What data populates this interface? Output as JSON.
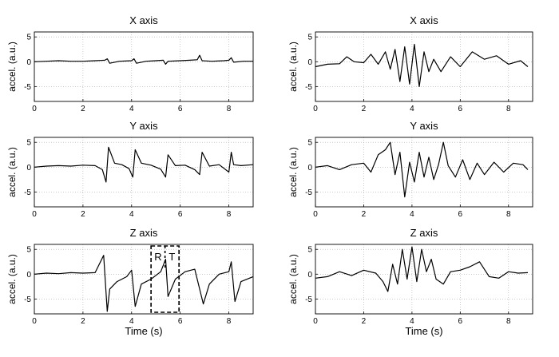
{
  "chart_data": [
    {
      "type": "line",
      "title": "X axis",
      "ylabel": "accel. (a.u.)",
      "xlabel": "",
      "xlim": [
        0,
        9
      ],
      "ylim": [
        -8,
        6
      ],
      "xticks": [
        0,
        2,
        4,
        6,
        8
      ],
      "yticks": [
        5,
        0,
        -5
      ],
      "grid": true,
      "x": [
        0,
        0.5,
        1.0,
        1.5,
        2.0,
        2.5,
        2.9,
        3.0,
        3.1,
        3.5,
        4.0,
        4.1,
        4.2,
        4.6,
        5.0,
        5.3,
        5.4,
        5.5,
        6.0,
        6.4,
        6.7,
        6.8,
        6.9,
        7.3,
        7.8,
        8.0,
        8.1,
        8.2,
        8.6,
        9.0
      ],
      "values": [
        0,
        0.1,
        0.2,
        0.1,
        0.1,
        0.2,
        0.3,
        0.6,
        -0.3,
        0.1,
        0.2,
        0.6,
        -0.3,
        0.1,
        0.2,
        0.3,
        -0.5,
        0.1,
        0.2,
        0.3,
        0.4,
        1.3,
        0.2,
        0.1,
        0.2,
        0.3,
        0.8,
        -0.1,
        0.1,
        0.1
      ]
    },
    {
      "type": "line",
      "title": "X axis",
      "ylabel": "accel. (a.u.)",
      "xlabel": "",
      "xlim": [
        0,
        9
      ],
      "ylim": [
        -8,
        6
      ],
      "xticks": [
        0,
        2,
        4,
        6,
        8
      ],
      "yticks": [
        5,
        0,
        -5
      ],
      "grid": true,
      "x": [
        0,
        0.5,
        1.0,
        1.3,
        1.6,
        2.0,
        2.3,
        2.6,
        2.9,
        3.1,
        3.3,
        3.5,
        3.7,
        3.9,
        4.1,
        4.3,
        4.5,
        4.7,
        4.9,
        5.2,
        5.6,
        6.0,
        6.5,
        7.0,
        7.5,
        8.0,
        8.5,
        8.8
      ],
      "values": [
        -1,
        -0.5,
        -0.4,
        1,
        0,
        -0.2,
        1.5,
        -0.5,
        2,
        -1.5,
        2.5,
        -4,
        3,
        -4.5,
        3.5,
        -5,
        2,
        -2,
        0.5,
        -2,
        1,
        -1,
        2,
        0.5,
        1.2,
        -0.5,
        0.2,
        -1
      ]
    },
    {
      "type": "line",
      "title": "Y axis",
      "ylabel": "accel. (a.u.)",
      "xlabel": "",
      "xlim": [
        0,
        9
      ],
      "ylim": [
        -8,
        6
      ],
      "xticks": [
        0,
        2,
        4,
        6,
        8
      ],
      "yticks": [
        5,
        0,
        -5
      ],
      "grid": true,
      "x": [
        0,
        0.5,
        1.0,
        1.5,
        2.0,
        2.5,
        2.8,
        2.95,
        3.05,
        3.3,
        3.6,
        3.9,
        4.05,
        4.15,
        4.4,
        4.8,
        5.2,
        5.4,
        5.5,
        5.8,
        6.2,
        6.6,
        6.8,
        6.9,
        7.2,
        7.6,
        8.0,
        8.1,
        8.2,
        8.5,
        9.0
      ],
      "values": [
        0,
        0.2,
        0.3,
        0.2,
        0.4,
        0.3,
        -0.5,
        -3.0,
        4.0,
        0.8,
        0.5,
        -0.3,
        -2.0,
        3.5,
        0.8,
        0.4,
        -0.4,
        -2.0,
        2.5,
        0.3,
        0.4,
        -0.5,
        -1.5,
        3.0,
        0.2,
        0.5,
        -1.0,
        3.0,
        0.5,
        0.3,
        0.5
      ]
    },
    {
      "type": "line",
      "title": "Y axis",
      "ylabel": "accel. (a.u.)",
      "xlabel": "",
      "xlim": [
        0,
        9
      ],
      "ylim": [
        -8,
        6
      ],
      "xticks": [
        0,
        2,
        4,
        6,
        8
      ],
      "yticks": [
        5,
        0,
        -5
      ],
      "grid": true,
      "x": [
        0,
        0.5,
        1.0,
        1.5,
        2.0,
        2.3,
        2.6,
        2.9,
        3.1,
        3.3,
        3.5,
        3.7,
        3.9,
        4.1,
        4.3,
        4.5,
        4.7,
        4.9,
        5.1,
        5.3,
        5.5,
        5.8,
        6.1,
        6.4,
        6.7,
        7.0,
        7.4,
        7.8,
        8.2,
        8.6,
        8.8
      ],
      "values": [
        0,
        0.3,
        -0.5,
        0.5,
        0.8,
        -1.0,
        2.5,
        3.5,
        5.0,
        -1.5,
        3.0,
        -6.0,
        1.0,
        -3.0,
        3.0,
        -2.0,
        2.0,
        -2.5,
        0.5,
        5.0,
        0.3,
        -2.0,
        1.5,
        -2.5,
        0.8,
        -1.5,
        1.0,
        -1.0,
        0.8,
        0.5,
        -0.5
      ]
    },
    {
      "type": "line",
      "title": "Z axis",
      "ylabel": "accel. (a.u.)",
      "xlabel": "Time (s)",
      "xlim": [
        0,
        9
      ],
      "ylim": [
        -8,
        6
      ],
      "xticks": [
        0,
        2,
        4,
        6,
        8
      ],
      "yticks": [
        5,
        0,
        -5
      ],
      "grid": true,
      "annotations": [
        "R",
        "T"
      ],
      "x": [
        0,
        0.5,
        1.0,
        1.5,
        2.0,
        2.5,
        2.85,
        3.0,
        3.1,
        3.4,
        3.8,
        4.0,
        4.15,
        4.4,
        4.8,
        5.2,
        5.4,
        5.5,
        5.8,
        6.2,
        6.6,
        6.8,
        6.95,
        7.2,
        7.6,
        8.0,
        8.1,
        8.25,
        8.5,
        9.0
      ],
      "values": [
        0,
        0.2,
        0.1,
        0.3,
        0.2,
        0.3,
        3.8,
        -7.5,
        -3.0,
        -1.5,
        -0.5,
        0.8,
        -6.5,
        -2.0,
        -1.0,
        0.5,
        3.0,
        -4.5,
        -1.0,
        0.5,
        1.0,
        -3.0,
        -6.0,
        -2.0,
        0.0,
        0.5,
        2.5,
        -5.5,
        -1.5,
        -0.5
      ]
    },
    {
      "type": "line",
      "title": "Z axis",
      "ylabel": "accel. (a.u.)",
      "xlabel": "Time (s)",
      "xlim": [
        0,
        9
      ],
      "ylim": [
        -8,
        6
      ],
      "xticks": [
        0,
        2,
        4,
        6,
        8
      ],
      "yticks": [
        5,
        0,
        -5
      ],
      "grid": true,
      "x": [
        0,
        0.5,
        1.0,
        1.5,
        2.0,
        2.5,
        2.8,
        3.0,
        3.2,
        3.4,
        3.6,
        3.8,
        4.0,
        4.2,
        4.4,
        4.6,
        4.8,
        5.0,
        5.3,
        5.6,
        6.0,
        6.4,
        6.8,
        7.2,
        7.6,
        8.0,
        8.4,
        8.8
      ],
      "values": [
        -0.8,
        -0.5,
        0.5,
        -0.3,
        0.8,
        0.2,
        -1.5,
        -3.5,
        2.0,
        -2.0,
        5.0,
        -1.0,
        5.5,
        -1.5,
        5.0,
        0.5,
        3.0,
        -1.0,
        -2.0,
        0.5,
        0.8,
        1.5,
        2.5,
        -0.5,
        -0.8,
        0.5,
        0.2,
        0.3
      ]
    }
  ]
}
